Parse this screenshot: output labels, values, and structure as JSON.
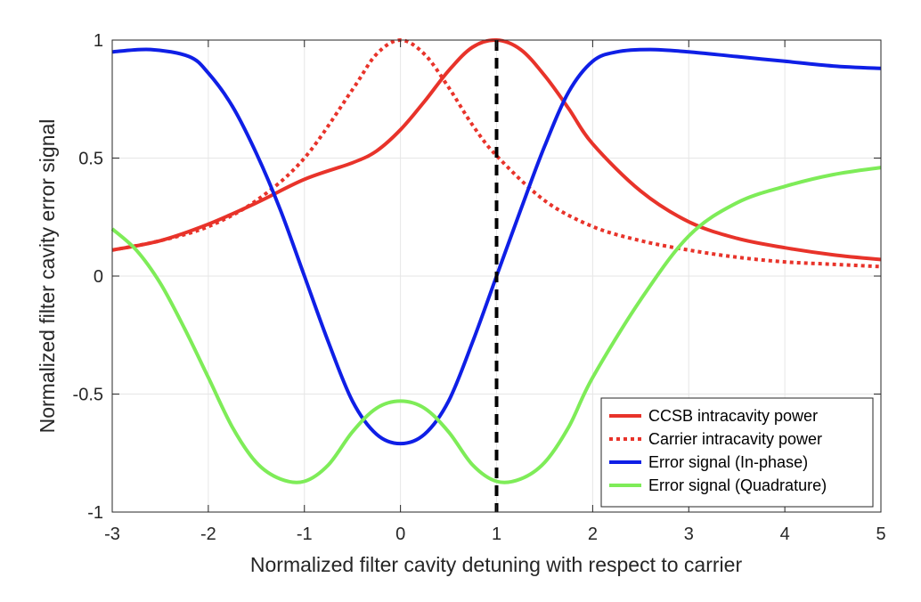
{
  "chart_data": {
    "type": "line",
    "title": "",
    "xlabel": "Normalized filter cavity detuning with respect to carrier",
    "ylabel": "Normalized filter cavity error signal",
    "xlim": [
      -3,
      5
    ],
    "ylim": [
      -1,
      1
    ],
    "x_ticks": [
      "-3",
      "-2",
      "-1",
      "0",
      "1",
      "2",
      "3",
      "4",
      "5"
    ],
    "y_ticks": [
      "-1",
      "-0.5",
      "0",
      "0.5",
      "1"
    ],
    "grid": true,
    "legend_position": "bottom-right",
    "vertical_marker": {
      "x": 1,
      "style": "dashed",
      "color": "#000000"
    },
    "series": [
      {
        "name": "CCSB intracavity power",
        "color": "#E8332A",
        "style": "solid",
        "x": [
          -3,
          -2.5,
          -2,
          -1.5,
          -1,
          -0.5,
          -0.25,
          0,
          0.25,
          0.5,
          0.75,
          1,
          1.25,
          1.5,
          1.75,
          2,
          2.5,
          3,
          3.5,
          4,
          4.5,
          5
        ],
        "y": [
          0.11,
          0.15,
          0.22,
          0.31,
          0.41,
          0.48,
          0.53,
          0.62,
          0.74,
          0.87,
          0.97,
          1.0,
          0.96,
          0.85,
          0.71,
          0.56,
          0.36,
          0.23,
          0.16,
          0.12,
          0.09,
          0.07
        ]
      },
      {
        "name": "Carrier intracavity power",
        "color": "#E8332A",
        "style": "dotted",
        "x": [
          -3,
          -2.5,
          -2,
          -1.5,
          -1,
          -0.5,
          -0.25,
          0,
          0.25,
          0.5,
          0.75,
          1,
          1.5,
          2,
          2.5,
          3,
          3.5,
          4,
          4.5,
          5
        ],
        "y": [
          0.11,
          0.15,
          0.21,
          0.32,
          0.5,
          0.79,
          0.94,
          1.0,
          0.94,
          0.8,
          0.64,
          0.51,
          0.32,
          0.21,
          0.15,
          0.11,
          0.08,
          0.06,
          0.05,
          0.04
        ]
      },
      {
        "name": "Error signal (In-phase)",
        "color": "#0F1FE6",
        "style": "solid",
        "x": [
          -3,
          -2.6,
          -2.2,
          -2,
          -1.75,
          -1.5,
          -1.25,
          -1,
          -0.75,
          -0.5,
          -0.25,
          0,
          0.25,
          0.5,
          0.75,
          1,
          1.25,
          1.5,
          1.75,
          2,
          2.25,
          2.6,
          3,
          3.5,
          4,
          4.5,
          5
        ],
        "y": [
          0.95,
          0.96,
          0.93,
          0.86,
          0.72,
          0.52,
          0.28,
          0.0,
          -0.28,
          -0.53,
          -0.67,
          -0.71,
          -0.67,
          -0.53,
          -0.28,
          0.0,
          0.28,
          0.55,
          0.78,
          0.91,
          0.95,
          0.96,
          0.95,
          0.93,
          0.91,
          0.89,
          0.88
        ]
      },
      {
        "name": "Error signal (Quadrature)",
        "color": "#7EEC58",
        "style": "solid",
        "x": [
          -3,
          -2.75,
          -2.5,
          -2.25,
          -2,
          -1.75,
          -1.5,
          -1.25,
          -1,
          -0.75,
          -0.5,
          -0.25,
          0,
          0.25,
          0.5,
          0.75,
          1,
          1.25,
          1.5,
          1.75,
          2,
          2.5,
          3,
          3.5,
          4,
          4.5,
          5
        ],
        "y": [
          0.2,
          0.11,
          -0.03,
          -0.22,
          -0.43,
          -0.64,
          -0.79,
          -0.86,
          -0.87,
          -0.8,
          -0.66,
          -0.56,
          -0.53,
          -0.56,
          -0.66,
          -0.8,
          -0.87,
          -0.86,
          -0.79,
          -0.64,
          -0.43,
          -0.1,
          0.17,
          0.31,
          0.38,
          0.43,
          0.46
        ]
      }
    ]
  }
}
